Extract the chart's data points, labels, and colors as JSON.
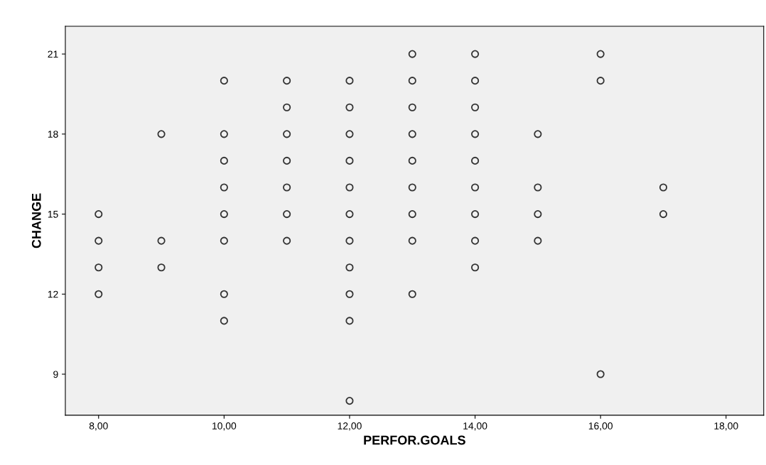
{
  "chart_data": {
    "type": "scatter",
    "xlabel": "PERFOR.GOALS",
    "ylabel": "CHANGE",
    "series": [
      {
        "color": "#333333",
        "x": [
          8,
          8,
          8,
          8,
          9,
          9,
          9,
          10,
          10,
          10,
          10,
          10,
          10,
          10,
          10,
          11,
          11,
          11,
          11,
          11,
          11,
          11,
          12,
          12,
          12,
          12,
          12,
          12,
          12,
          12,
          12,
          12,
          12,
          13,
          13,
          13,
          13,
          13,
          13,
          13,
          13,
          13,
          14,
          14,
          14,
          14,
          14,
          14,
          14,
          14,
          14,
          15,
          15,
          15,
          15,
          16,
          16,
          16,
          17,
          17
        ],
        "values": [
          15,
          14,
          13,
          12,
          18,
          14,
          13,
          20,
          18,
          17,
          16,
          15,
          14,
          12,
          11,
          20,
          19,
          18,
          17,
          16,
          15,
          14,
          20,
          19,
          18,
          17,
          16,
          15,
          14,
          13,
          12,
          11,
          8,
          21,
          20,
          19,
          18,
          17,
          16,
          15,
          14,
          12,
          21,
          20,
          19,
          18,
          17,
          16,
          15,
          14,
          13,
          18,
          16,
          15,
          14,
          21,
          20,
          9,
          16,
          15
        ]
      }
    ],
    "marker": "circle",
    "grid": false,
    "xlim": [
      7.47,
      18.6
    ],
    "ylim": [
      7.46,
      22.04
    ],
    "xticks": [
      {
        "value": 8,
        "label": "8,00"
      },
      {
        "value": 10,
        "label": "10,00"
      },
      {
        "value": 12,
        "label": "12,00"
      },
      {
        "value": 14,
        "label": "14,00"
      },
      {
        "value": 16,
        "label": "16,00"
      },
      {
        "value": 18,
        "label": "18,00"
      }
    ],
    "yticks": [
      9,
      12,
      15,
      18,
      21
    ]
  }
}
